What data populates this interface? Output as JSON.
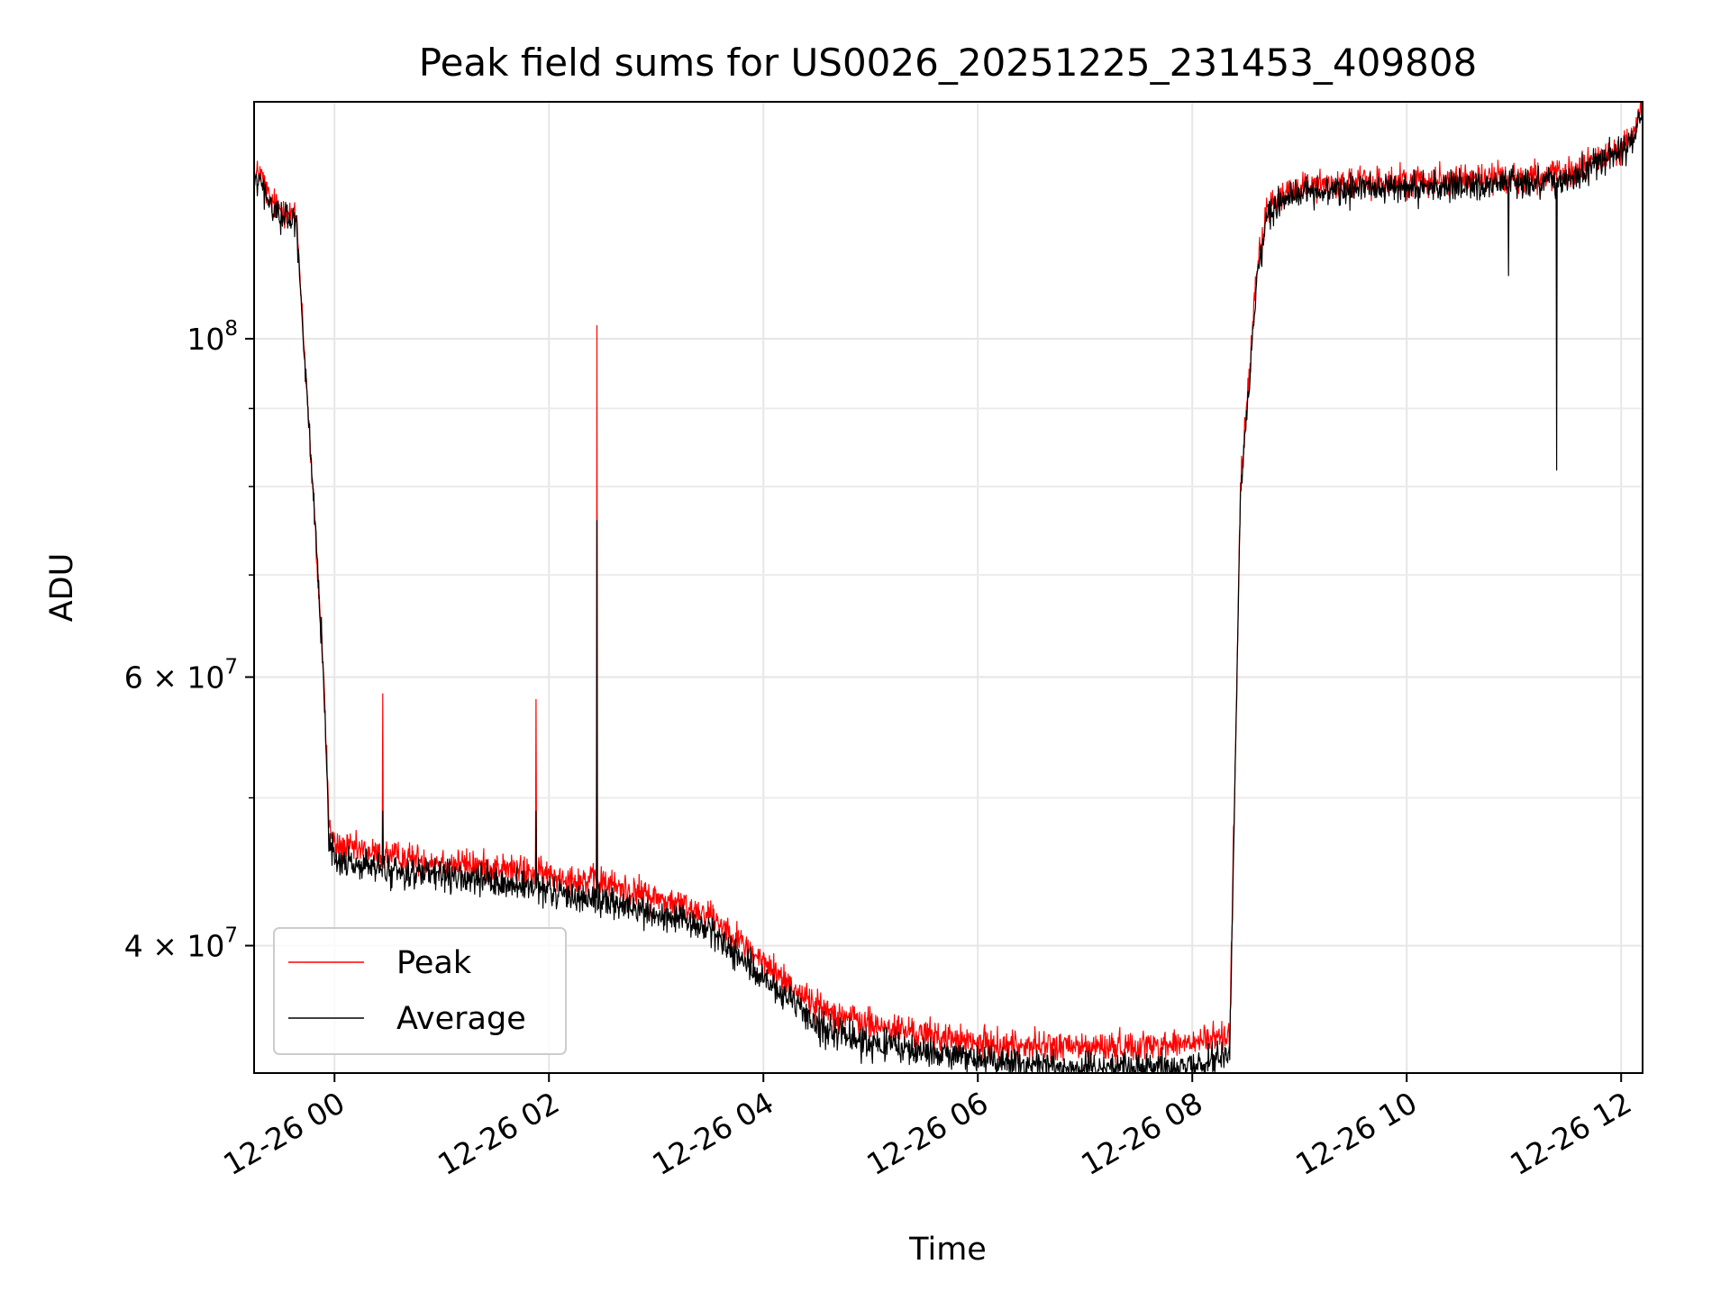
{
  "chart_data": {
    "type": "line",
    "title": "Peak field sums for US0026_20251225_231453_409808",
    "xlabel": "Time",
    "ylabel": "ADU",
    "yscale": "log",
    "ylim": [
      33000000,
      143000000
    ],
    "xlim": [
      -0.75,
      12.2
    ],
    "x_unit": "hours since 12-26 00:00",
    "x_ticks": [
      {
        "value": 0,
        "label": "12-26 00"
      },
      {
        "value": 2,
        "label": "12-26 02"
      },
      {
        "value": 4,
        "label": "12-26 04"
      },
      {
        "value": 6,
        "label": "12-26 06"
      },
      {
        "value": 8,
        "label": "12-26 08"
      },
      {
        "value": 10,
        "label": "12-26 10"
      },
      {
        "value": 12,
        "label": "12-26 12"
      }
    ],
    "y_major_ticks": [
      {
        "value": 100000000,
        "mantissa": "",
        "exponent": "8"
      },
      {
        "value": 60000000,
        "mantissa": "6 × ",
        "exponent": "7"
      },
      {
        "value": 40000000,
        "mantissa": "4 × ",
        "exponent": "7"
      }
    ],
    "y_minor_ticks": [
      50000000,
      70000000,
      80000000,
      90000000
    ],
    "grid": true,
    "legend": {
      "position": "lower-left"
    },
    "series": [
      {
        "name": "Peak",
        "color": "#ff0000",
        "noise": 0.035,
        "trend": [
          [
            -0.75,
            127000000
          ],
          [
            -0.7,
            129000000
          ],
          [
            -0.6,
            123000000
          ],
          [
            -0.35,
            120000000
          ],
          [
            -0.35,
            119000000
          ],
          [
            -0.1,
            60000000
          ],
          [
            -0.05,
            48000000
          ],
          [
            0.0,
            46500000
          ],
          [
            0.5,
            45800000
          ],
          [
            1.5,
            45000000
          ],
          [
            2.5,
            44000000
          ],
          [
            3.5,
            42000000
          ],
          [
            4.0,
            39000000
          ],
          [
            4.5,
            36500000
          ],
          [
            5.0,
            35500000
          ],
          [
            6.0,
            34500000
          ],
          [
            7.0,
            34300000
          ],
          [
            8.0,
            34500000
          ],
          [
            8.35,
            35000000
          ],
          [
            8.45,
            80000000
          ],
          [
            8.6,
            110000000
          ],
          [
            8.7,
            122000000
          ],
          [
            9.0,
            126000000
          ],
          [
            10.0,
            127000000
          ],
          [
            11.5,
            128000000
          ],
          [
            12.1,
            135000000
          ],
          [
            12.2,
            143000000
          ]
        ],
        "spikes": [
          [
            0.45,
            58500000
          ],
          [
            1.88,
            58000000
          ],
          [
            2.45,
            102000000
          ]
        ],
        "dips": []
      },
      {
        "name": "Average",
        "color": "#000000",
        "noise": 0.035,
        "trend": [
          [
            -0.75,
            126000000
          ],
          [
            -0.7,
            127000000
          ],
          [
            -0.6,
            122000000
          ],
          [
            -0.35,
            119000000
          ],
          [
            -0.35,
            118000000
          ],
          [
            -0.1,
            60000000
          ],
          [
            -0.05,
            47000000
          ],
          [
            0.0,
            45500000
          ],
          [
            0.5,
            44800000
          ],
          [
            1.5,
            44000000
          ],
          [
            2.5,
            42800000
          ],
          [
            3.5,
            41000000
          ],
          [
            4.0,
            38000000
          ],
          [
            4.5,
            35500000
          ],
          [
            5.0,
            34500000
          ],
          [
            6.0,
            33700000
          ],
          [
            7.0,
            33200000
          ],
          [
            8.0,
            33300000
          ],
          [
            8.35,
            34000000
          ],
          [
            8.45,
            79000000
          ],
          [
            8.6,
            109000000
          ],
          [
            8.7,
            121000000
          ],
          [
            9.0,
            125000000
          ],
          [
            10.0,
            125500000
          ],
          [
            11.5,
            127000000
          ],
          [
            12.1,
            134000000
          ],
          [
            12.2,
            142000000
          ]
        ],
        "spikes": [
          [
            0.45,
            49000000
          ],
          [
            1.88,
            49000000
          ],
          [
            2.45,
            76000000
          ]
        ],
        "dips": [
          [
            11.4,
            82000000
          ],
          [
            10.95,
            110000000
          ]
        ]
      }
    ]
  }
}
